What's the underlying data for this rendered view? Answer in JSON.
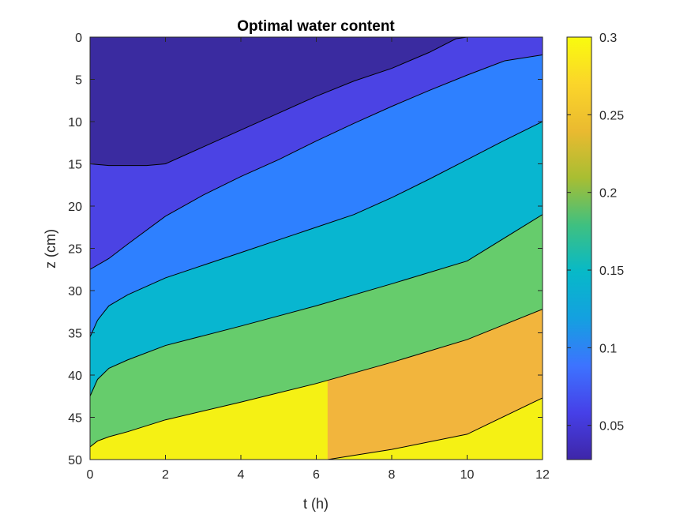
{
  "chart_data": {
    "type": "contour",
    "title": "Optimal water content",
    "xlabel": "t (h)",
    "ylabel": "z (cm)",
    "xlim": [
      0,
      12
    ],
    "ylim": [
      0,
      50
    ],
    "y_direction": "reverse",
    "x_ticks": [
      "0",
      "2",
      "4",
      "6",
      "8",
      "10",
      "12"
    ],
    "y_ticks": [
      "0",
      "5",
      "10",
      "15",
      "20",
      "25",
      "30",
      "35",
      "40",
      "45",
      "50"
    ],
    "colorbar": {
      "range": [
        0.028,
        0.3
      ],
      "ticks": [
        "0.05",
        "0.1",
        "0.15",
        "0.2",
        "0.25",
        "0.3"
      ],
      "colormap": "parula"
    },
    "levels": [
      {
        "name": "0.05",
        "color": "#3a2fa0",
        "curve": [
          [
            0,
            15.0
          ],
          [
            0.5,
            15.2
          ],
          [
            1,
            15.2
          ],
          [
            1.5,
            15.2
          ],
          [
            2,
            15.0
          ],
          [
            3,
            13.0
          ],
          [
            4,
            11.0
          ],
          [
            5,
            9.0
          ],
          [
            6,
            7.0
          ],
          [
            7,
            5.2
          ],
          [
            8,
            3.7
          ],
          [
            9,
            1.8
          ],
          [
            9.7,
            0.2
          ],
          [
            10,
            0.0
          ],
          [
            12,
            0.0
          ]
        ]
      },
      {
        "name": "0.1",
        "color": "#4b43e4",
        "curve": [
          [
            0,
            27.5
          ],
          [
            0.5,
            26.2
          ],
          [
            1,
            24.5
          ],
          [
            2,
            21.2
          ],
          [
            3,
            18.7
          ],
          [
            4,
            16.5
          ],
          [
            5,
            14.5
          ],
          [
            6,
            12.3
          ],
          [
            7,
            10.2
          ],
          [
            8,
            8.2
          ],
          [
            9,
            6.3
          ],
          [
            10,
            4.5
          ],
          [
            11,
            2.8
          ],
          [
            12,
            2.1
          ]
        ]
      },
      {
        "name": "0.15",
        "color": "#2e80ff",
        "curve": [
          [
            0,
            35.5
          ],
          [
            0.2,
            33.5
          ],
          [
            0.5,
            31.8
          ],
          [
            1,
            30.5
          ],
          [
            2,
            28.5
          ],
          [
            3,
            27.0
          ],
          [
            4,
            25.5
          ],
          [
            5,
            24.0
          ],
          [
            6,
            22.5
          ],
          [
            7,
            21.0
          ],
          [
            8,
            19.0
          ],
          [
            9,
            16.8
          ],
          [
            10,
            14.5
          ],
          [
            11,
            12.2
          ],
          [
            12,
            10.0
          ]
        ]
      },
      {
        "name": "0.2",
        "color": "#08b6d0",
        "curve": [
          [
            0,
            42.5
          ],
          [
            0.2,
            40.5
          ],
          [
            0.5,
            39.2
          ],
          [
            1,
            38.2
          ],
          [
            2,
            36.5
          ],
          [
            4,
            34.2
          ],
          [
            6,
            31.8
          ],
          [
            8,
            29.2
          ],
          [
            10,
            26.5
          ],
          [
            12,
            21.0
          ]
        ]
      },
      {
        "name": "0.25",
        "color": "#66cc6c",
        "curve": [
          [
            0,
            48.5
          ],
          [
            0.2,
            47.8
          ],
          [
            0.5,
            47.3
          ],
          [
            1,
            46.7
          ],
          [
            2,
            45.3
          ],
          [
            4,
            43.2
          ],
          [
            6,
            41.0
          ],
          [
            8,
            38.5
          ],
          [
            10,
            35.8
          ],
          [
            12,
            32.2
          ]
        ]
      },
      {
        "name": "0.3",
        "color": "#f2b53d",
        "curve": [
          [
            6.3,
            50.0
          ],
          [
            8,
            48.8
          ],
          [
            10,
            47.0
          ],
          [
            12,
            42.7
          ]
        ]
      }
    ],
    "top_fill_color": "#3a2ba0",
    "above_first_curve_color": "#3a2fa0",
    "max_region_color": "#f5f114",
    "colorbar_gradient": [
      "#3e26a8",
      "#4640e8",
      "#3d73ff",
      "#14a0e0",
      "#07b9c8",
      "#3fc080",
      "#a8be32",
      "#eaba30",
      "#fbd52a",
      "#f9fb0e"
    ]
  }
}
